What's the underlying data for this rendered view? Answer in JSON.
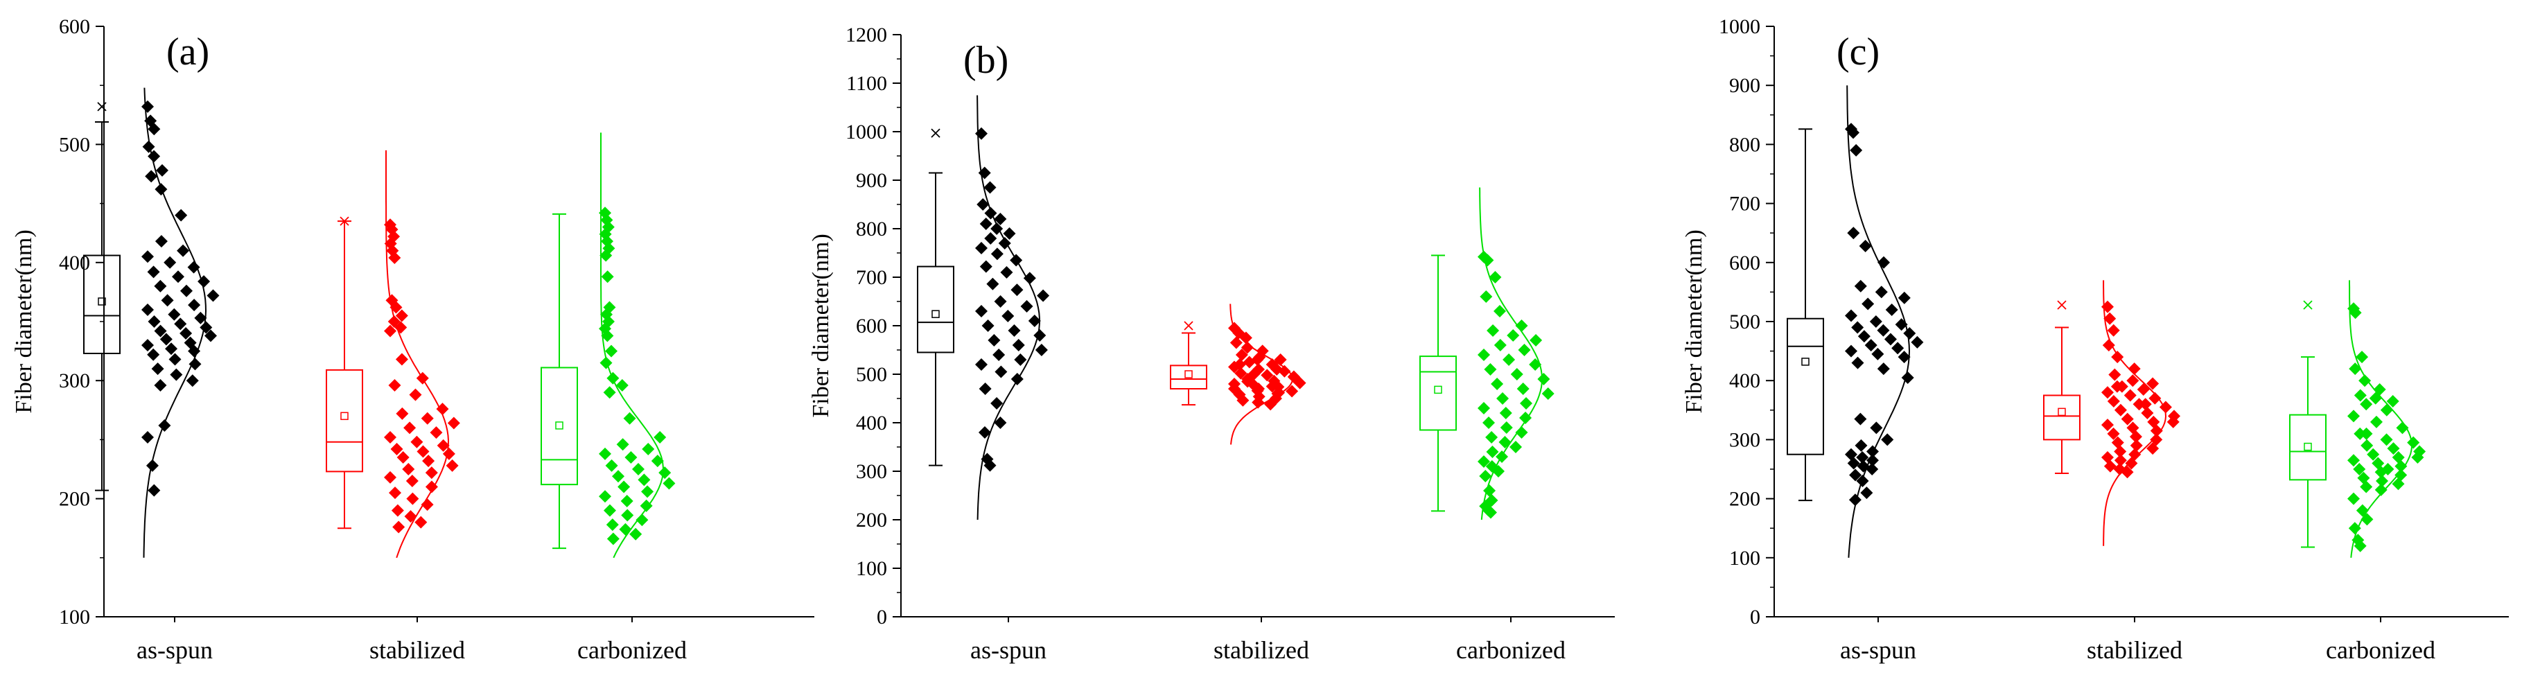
{
  "chart_data": [
    {
      "type": "box+scatter+distribution",
      "panel_label": "(a)",
      "ylabel": "Fiber diameter(nm)",
      "ylim": [
        100,
        600
      ],
      "yticks": [
        100,
        200,
        300,
        400,
        500,
        600
      ],
      "categories": [
        "as-spun",
        "stabilized",
        "carbonized"
      ],
      "series": [
        {
          "name": "as-spun",
          "color": "#000000",
          "box": {
            "whisker_low": 207,
            "q1": 323,
            "median": 355,
            "q3": 406,
            "whisker_high": 519,
            "mean": 367,
            "outliers": [
              532
            ]
          },
          "points": [
            532,
            520,
            513,
            498,
            490,
            478,
            473,
            462,
            440,
            418,
            410,
            405,
            400,
            396,
            392,
            388,
            384,
            380,
            376,
            372,
            368,
            364,
            360,
            356,
            353,
            350,
            348,
            345,
            342,
            340,
            338,
            335,
            332,
            330,
            327,
            325,
            322,
            318,
            314,
            310,
            305,
            300,
            296,
            262,
            252,
            228,
            207
          ],
          "curve": {
            "mean": 360,
            "sd": 65,
            "range": [
              150,
              548
            ]
          }
        },
        {
          "name": "stabilized",
          "color": "#ff0000",
          "box": {
            "whisker_low": 175,
            "q1": 223,
            "median": 248,
            "q3": 309,
            "whisker_high": 435,
            "mean": 270,
            "outliers": [
              435
            ]
          },
          "points": [
            432,
            428,
            422,
            416,
            410,
            404,
            368,
            362,
            355,
            350,
            345,
            342,
            318,
            302,
            296,
            288,
            276,
            272,
            268,
            264,
            260,
            256,
            252,
            248,
            245,
            242,
            240,
            238,
            235,
            232,
            228,
            225,
            222,
            218,
            215,
            210,
            205,
            200,
            195,
            190,
            185,
            180,
            176
          ],
          "curve": {
            "mean": 248,
            "sd": 52,
            "range": [
              150,
              495
            ]
          }
        },
        {
          "name": "carbonized",
          "color": "#00e000",
          "box": {
            "whisker_low": 158,
            "q1": 212,
            "median": 233,
            "q3": 311,
            "whisker_high": 441,
            "mean": 262,
            "outliers": []
          },
          "points": [
            442,
            436,
            430,
            424,
            418,
            412,
            406,
            388,
            362,
            356,
            350,
            344,
            338,
            325,
            315,
            302,
            296,
            290,
            268,
            252,
            246,
            242,
            238,
            235,
            232,
            228,
            225,
            222,
            219,
            216,
            213,
            210,
            206,
            202,
            198,
            194,
            190,
            186,
            182,
            178,
            174,
            170,
            166
          ],
          "curve": {
            "mean": 225,
            "sd": 42,
            "range": [
              150,
              510
            ]
          }
        }
      ]
    },
    {
      "type": "box+scatter+distribution",
      "panel_label": "(b)",
      "ylabel": "Fiber diameter(nm)",
      "ylim": [
        0,
        1200
      ],
      "yticks": [
        0,
        100,
        200,
        300,
        400,
        500,
        600,
        700,
        800,
        900,
        1000,
        1100,
        1200
      ],
      "categories": [
        "as-spun",
        "stabilized",
        "carbonized"
      ],
      "series": [
        {
          "name": "as-spun",
          "color": "#000000",
          "box": {
            "whisker_low": 312,
            "q1": 545,
            "median": 607,
            "q3": 722,
            "whisker_high": 915,
            "mean": 624,
            "outliers": [
              997
            ]
          },
          "points": [
            996,
            915,
            885,
            850,
            832,
            820,
            810,
            800,
            790,
            780,
            770,
            760,
            748,
            735,
            722,
            710,
            698,
            686,
            674,
            662,
            650,
            640,
            630,
            620,
            610,
            600,
            590,
            580,
            570,
            560,
            550,
            540,
            530,
            520,
            505,
            490,
            470,
            440,
            400,
            380,
            325,
            312
          ],
          "curve": {
            "mean": 610,
            "sd": 130,
            "range": [
              200,
              1075
            ]
          }
        },
        {
          "name": "stabilized",
          "color": "#ff0000",
          "box": {
            "whisker_low": 437,
            "q1": 470,
            "median": 490,
            "q3": 518,
            "whisker_high": 585,
            "mean": 500,
            "outliers": [
              600
            ]
          },
          "points": [
            595,
            585,
            575,
            565,
            555,
            548,
            540,
            535,
            530,
            525,
            520,
            515,
            510,
            506,
            502,
            498,
            494,
            490,
            486,
            482,
            478,
            474,
            470,
            466,
            462,
            458,
            454,
            450,
            446,
            442,
            438,
            500,
            510,
            480,
            470,
            460,
            520,
            530,
            495,
            485,
            475,
            465
          ],
          "curve": {
            "mean": 490,
            "sd": 45,
            "range": [
              355,
              645
            ]
          }
        },
        {
          "name": "carbonized",
          "color": "#00e000",
          "box": {
            "whisker_low": 218,
            "q1": 385,
            "median": 505,
            "q3": 537,
            "whisker_high": 745,
            "mean": 468,
            "outliers": []
          },
          "points": [
            742,
            735,
            700,
            660,
            630,
            600,
            590,
            580,
            570,
            560,
            550,
            540,
            530,
            520,
            510,
            500,
            490,
            480,
            470,
            460,
            450,
            440,
            430,
            420,
            410,
            400,
            390,
            380,
            370,
            360,
            350,
            340,
            330,
            320,
            310,
            300,
            290,
            260,
            240,
            228,
            220,
            215
          ],
          "curve": {
            "mean": 490,
            "sd": 110,
            "range": [
              200,
              885
            ]
          }
        }
      ]
    },
    {
      "type": "box+scatter+distribution",
      "panel_label": "(c)",
      "ylabel": "Fiber diameter(nm)",
      "ylim": [
        0,
        1000
      ],
      "yticks": [
        0,
        100,
        200,
        300,
        400,
        500,
        600,
        700,
        800,
        900,
        1000
      ],
      "categories": [
        "as-spun",
        "stabilized",
        "carbonized"
      ],
      "series": [
        {
          "name": "as-spun",
          "color": "#000000",
          "box": {
            "whisker_low": 197,
            "q1": 275,
            "median": 458,
            "q3": 505,
            "whisker_high": 826,
            "mean": 432,
            "outliers": []
          },
          "points": [
            826,
            820,
            790,
            650,
            628,
            600,
            560,
            550,
            540,
            530,
            520,
            510,
            500,
            495,
            490,
            485,
            480,
            475,
            470,
            465,
            460,
            455,
            450,
            445,
            440,
            430,
            420,
            405,
            335,
            320,
            300,
            290,
            280,
            275,
            270,
            265,
            260,
            255,
            250,
            240,
            230,
            210,
            198
          ],
          "curve": {
            "mean": 450,
            "sd": 130,
            "range": [
              100,
              900
            ]
          }
        },
        {
          "name": "stabilized",
          "color": "#ff0000",
          "box": {
            "whisker_low": 243,
            "q1": 300,
            "median": 340,
            "q3": 375,
            "whisker_high": 490,
            "mean": 347,
            "outliers": [
              528
            ]
          },
          "points": [
            525,
            505,
            485,
            460,
            440,
            420,
            410,
            400,
            395,
            390,
            385,
            380,
            375,
            370,
            365,
            360,
            355,
            350,
            345,
            340,
            335,
            330,
            325,
            320,
            315,
            310,
            305,
            300,
            295,
            290,
            285,
            280,
            275,
            270,
            265,
            260,
            255,
            250,
            245,
            390,
            360,
            330
          ],
          "curve": {
            "mean": 340,
            "sd": 60,
            "range": [
              120,
              570
            ]
          }
        },
        {
          "name": "carbonized",
          "color": "#00e000",
          "box": {
            "whisker_low": 118,
            "q1": 232,
            "median": 280,
            "q3": 342,
            "whisker_high": 440,
            "mean": 288,
            "outliers": [
              528
            ]
          },
          "points": [
            522,
            515,
            440,
            420,
            400,
            385,
            375,
            370,
            365,
            360,
            350,
            340,
            330,
            320,
            310,
            300,
            295,
            290,
            285,
            280,
            275,
            270,
            265,
            260,
            255,
            250,
            245,
            240,
            235,
            230,
            225,
            220,
            215,
            200,
            180,
            165,
            150,
            130,
            120,
            310,
            250,
            270
          ],
          "curve": {
            "mean": 290,
            "sd": 70,
            "range": [
              100,
              570
            ]
          }
        }
      ]
    }
  ]
}
